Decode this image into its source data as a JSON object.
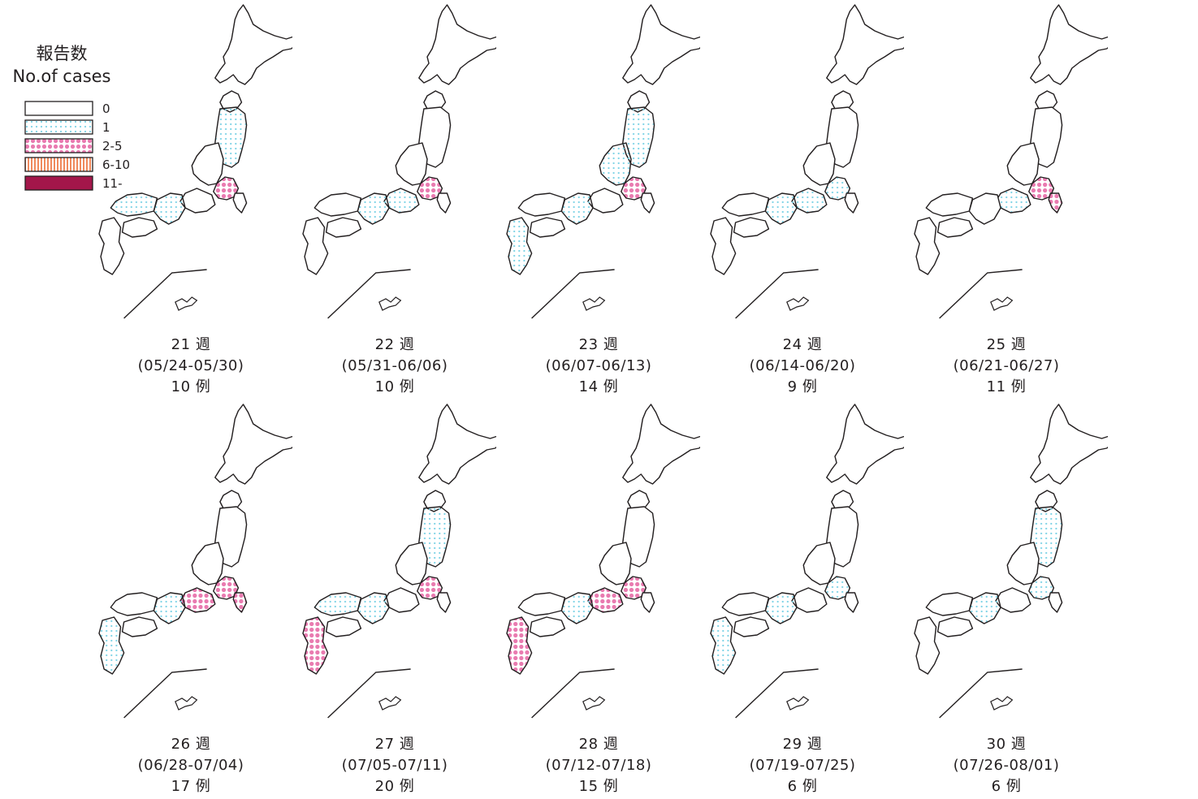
{
  "legend": {
    "title_ja": "報告数",
    "title_en": "No.of cases",
    "items": [
      {
        "label": "0",
        "fill": "none"
      },
      {
        "label": "1",
        "fill": "dots-blue"
      },
      {
        "label": "2-5",
        "fill": "dots-pink"
      },
      {
        "label": "6-10",
        "fill": "stripes-orange"
      },
      {
        "label": "11-",
        "fill": "solid-crimson"
      }
    ]
  },
  "colors": {
    "outline": "#231f20",
    "dots_blue": "#7fd3e6",
    "dots_pink": "#e97bb0",
    "stripes_orange": "#f08a5d",
    "solid_crimson": "#a3164a"
  },
  "weeks": [
    {
      "week": "21 週",
      "range": "(05/24-05/30)",
      "count": "10 例",
      "highlights": [
        {
          "region": "kanto",
          "level": "2-5"
        },
        {
          "region": "tohoku",
          "level": "1"
        },
        {
          "region": "kinki",
          "level": "1"
        },
        {
          "region": "chugoku",
          "level": "1"
        }
      ]
    },
    {
      "week": "22 週",
      "range": "(05/31-06/06)",
      "count": "10 例",
      "highlights": [
        {
          "region": "kanto",
          "level": "2-5"
        },
        {
          "region": "kinki",
          "level": "1"
        },
        {
          "region": "tokai",
          "level": "1"
        }
      ]
    },
    {
      "week": "23 週",
      "range": "(06/07-06/13)",
      "count": "14 例",
      "highlights": [
        {
          "region": "kanto",
          "level": "2-5"
        },
        {
          "region": "tohoku",
          "level": "1"
        },
        {
          "region": "chubu",
          "level": "1"
        },
        {
          "region": "kinki",
          "level": "1"
        },
        {
          "region": "kyushu",
          "level": "1"
        }
      ]
    },
    {
      "week": "24 週",
      "range": "(06/14-06/20)",
      "count": "9 例",
      "highlights": [
        {
          "region": "kanto",
          "level": "1"
        },
        {
          "region": "tokai",
          "level": "1"
        },
        {
          "region": "kinki",
          "level": "1"
        }
      ]
    },
    {
      "week": "25 週",
      "range": "(06/21-06/27)",
      "count": "11 例",
      "highlights": [
        {
          "region": "kanto",
          "level": "2-5"
        },
        {
          "region": "chiba",
          "level": "2-5"
        },
        {
          "region": "tokai",
          "level": "1"
        }
      ]
    },
    {
      "week": "26 週",
      "range": "(06/28-07/04)",
      "count": "17 例",
      "highlights": [
        {
          "region": "kanto",
          "level": "2-5"
        },
        {
          "region": "chiba",
          "level": "2-5"
        },
        {
          "region": "tokai",
          "level": "2-5"
        },
        {
          "region": "kinki",
          "level": "1"
        },
        {
          "region": "kyushu",
          "level": "1"
        }
      ]
    },
    {
      "week": "27 週",
      "range": "(07/05-07/11)",
      "count": "20 例",
      "highlights": [
        {
          "region": "kanto",
          "level": "2-5"
        },
        {
          "region": "tohoku",
          "level": "1"
        },
        {
          "region": "kinki",
          "level": "1"
        },
        {
          "region": "kyushu",
          "level": "2-5"
        },
        {
          "region": "chugoku",
          "level": "1"
        }
      ]
    },
    {
      "week": "28 週",
      "range": "(07/12-07/18)",
      "count": "15 例",
      "highlights": [
        {
          "region": "kanto",
          "level": "2-5"
        },
        {
          "region": "tokai",
          "level": "2-5"
        },
        {
          "region": "kyushu",
          "level": "2-5"
        },
        {
          "region": "kinki",
          "level": "1"
        }
      ]
    },
    {
      "week": "29 週",
      "range": "(07/19-07/25)",
      "count": "6 例",
      "highlights": [
        {
          "region": "kanto",
          "level": "1"
        },
        {
          "region": "kinki",
          "level": "1"
        },
        {
          "region": "kyushu",
          "level": "1"
        }
      ]
    },
    {
      "week": "30 週",
      "range": "(07/26-08/01)",
      "count": "6 例",
      "highlights": [
        {
          "region": "tohoku",
          "level": "1"
        },
        {
          "region": "kanto",
          "level": "1"
        },
        {
          "region": "kinki",
          "level": "1"
        }
      ]
    }
  ]
}
